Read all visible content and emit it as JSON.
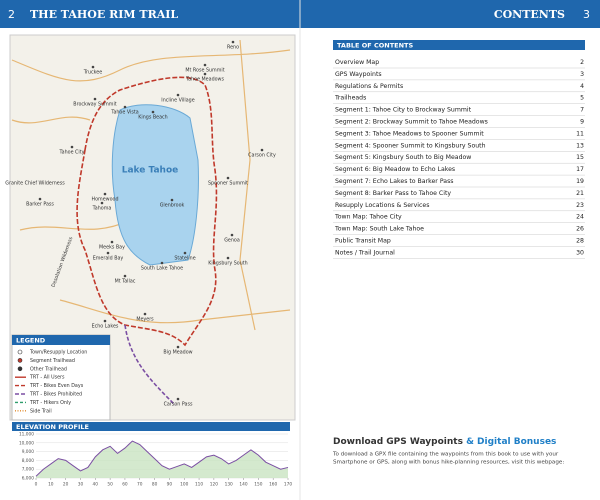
{
  "header": {
    "left_page": "2",
    "left_title": "THE TAHOE RIM TRAIL",
    "right_title": "CONTENTS",
    "right_page": "3"
  },
  "map": {
    "labels": [
      "Reno",
      "Truckee",
      "Mt Rose Summit",
      "Tahoe Meadows",
      "Brockway Summit",
      "Tahoe Vista",
      "Kings Beach",
      "Incline Village",
      "Carson City",
      "Tahoe City",
      "Lake Tahoe",
      "Spooner Summit",
      "Glenbrook",
      "Homewood",
      "Tahoma",
      "Granite Chief Wilderness",
      "Barker Pass",
      "Meeks Bay",
      "Emerald Bay",
      "Genoa",
      "Stateline",
      "Kingsbury South",
      "South Lake Tahoe",
      "Mt Tallac",
      "Desolation Wilderness",
      "Echo Lakes",
      "Meyers",
      "Big Meadow",
      "Carson Pass"
    ]
  },
  "legend": {
    "title": "LEGEND",
    "items": [
      "Town/Resupply Location",
      "Segment Trailhead",
      "Other Trailhead",
      "TRT - All Users",
      "TRT - Bikes Even Days",
      "TRT - Bikes Prohibited",
      "TRT - Hikers Only",
      "Side Trail"
    ]
  },
  "elevation_profile": {
    "title": "ELEVATION PROFILE",
    "xlim": [
      0,
      170
    ],
    "ylim": [
      6000,
      11000
    ],
    "xticks": [
      0,
      10,
      20,
      30,
      40,
      50,
      60,
      70,
      80,
      90,
      100,
      110,
      120,
      130,
      140,
      150,
      160,
      170
    ],
    "yticks": [
      {
        "value": 6000,
        "label": "6,000"
      },
      {
        "value": 7000,
        "label": "7,000"
      },
      {
        "value": 8000,
        "label": "8,000"
      },
      {
        "value": 9000,
        "label": "9,000"
      },
      {
        "value": 10000,
        "label": "10,000"
      },
      {
        "value": 11000,
        "label": "11,000"
      }
    ],
    "x": [
      0,
      5,
      10,
      15,
      20,
      25,
      30,
      35,
      40,
      45,
      50,
      55,
      60,
      65,
      70,
      75,
      80,
      85,
      90,
      95,
      100,
      105,
      110,
      115,
      120,
      125,
      130,
      135,
      140,
      145,
      150,
      155,
      160,
      165,
      170
    ],
    "values": [
      6200,
      7000,
      7600,
      8200,
      8000,
      7400,
      6800,
      7200,
      8400,
      9200,
      9600,
      8800,
      9400,
      10200,
      9800,
      9000,
      8200,
      7400,
      7000,
      7300,
      7600,
      7200,
      7800,
      8400,
      8600,
      8200,
      7600,
      8000,
      8600,
      9200,
      8600,
      7800,
      7400,
      7000,
      7200
    ]
  },
  "toc": {
    "title": "TABLE OF CONTENTS",
    "rows": [
      [
        "Overview Map",
        "2"
      ],
      [
        "GPS Waypoints",
        "3"
      ],
      [
        "Regulations & Permits",
        "4"
      ],
      [
        "Trailheads",
        "5"
      ],
      [
        "Segment 1: Tahoe City to Brockway Summit",
        "7"
      ],
      [
        "Segment 2: Brockway Summit to Tahoe Meadows",
        "9"
      ],
      [
        "Segment 3: Tahoe Meadows to Spooner Summit",
        "11"
      ],
      [
        "Segment 4: Spooner Summit to Kingsbury South",
        "13"
      ],
      [
        "Segment 5: Kingsbury South to Big Meadow",
        "15"
      ],
      [
        "Segment 6: Big Meadow to Echo Lakes",
        "17"
      ],
      [
        "Segment 7: Echo Lakes to Barker Pass",
        "19"
      ],
      [
        "Segment 8: Barker Pass to Tahoe City",
        "21"
      ],
      [
        "Resupply Locations & Services",
        "23"
      ],
      [
        "Town Map: Tahoe City",
        "24"
      ],
      [
        "Town Map: South Lake Tahoe",
        "26"
      ],
      [
        "Public Transit Map",
        "28"
      ],
      [
        "Notes / Trail Journal",
        "30"
      ]
    ]
  },
  "download": {
    "title_a": "Download GPS Waypoints",
    "title_b": "& Digital Bonuses",
    "lines": [
      "To download a GPX file containing the waypoints from this book to use with your",
      "Smartphone or GPS, along with bonus hike-planning resources, visit this webpage:"
    ]
  }
}
